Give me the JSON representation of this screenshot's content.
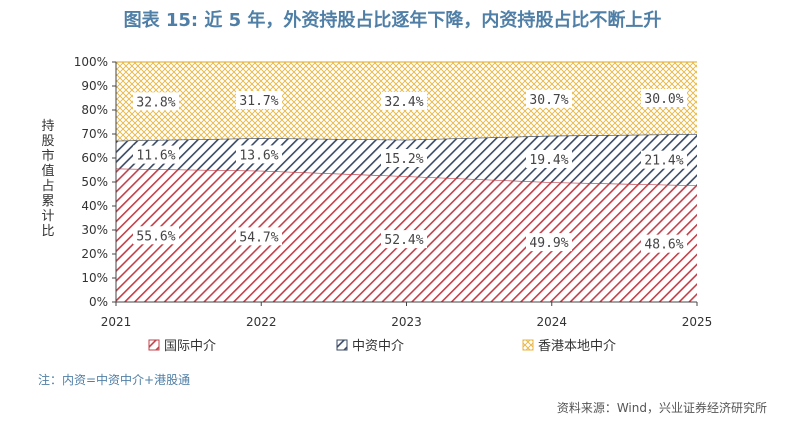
{
  "title": "图表 15: 近 5 年，外资持股占比逐年下降，内资持股占比不断上升",
  "note": "注：内资=中资中介+港股通",
  "source": "资料来源：Wind，兴业证券经济研究所",
  "chart_data": {
    "type": "area",
    "stacked": true,
    "x": [
      "2021",
      "2022",
      "2023",
      "2024",
      "2025"
    ],
    "ylabel": "持股市值占累计比",
    "ylim": [
      0,
      100
    ],
    "yticks": [
      "0%",
      "10%",
      "20%",
      "30%",
      "40%",
      "50%",
      "60%",
      "70%",
      "80%",
      "90%",
      "100%"
    ],
    "grid": false,
    "legend": "bottom",
    "series": [
      {
        "name": "国际中介",
        "values": [
          55.6,
          54.7,
          52.4,
          49.9,
          48.6
        ],
        "labels": [
          "55.6%",
          "54.7%",
          "52.4%",
          "49.9%",
          "48.6%"
        ],
        "color": "#c0404a",
        "pattern": "diagonal"
      },
      {
        "name": "中资中介",
        "values": [
          11.6,
          13.6,
          15.2,
          19.4,
          21.4
        ],
        "labels": [
          "11.6%",
          "13.6%",
          "15.2%",
          "19.4%",
          "21.4%"
        ],
        "color": "#3a4a64",
        "pattern": "diagonal"
      },
      {
        "name": "香港本地中介",
        "values": [
          32.8,
          31.7,
          32.4,
          30.7,
          30.0
        ],
        "labels": [
          "32.8%",
          "31.7%",
          "32.4%",
          "30.7%",
          "30.0%"
        ],
        "color": "#e8b640",
        "pattern": "crosshatch"
      }
    ]
  }
}
